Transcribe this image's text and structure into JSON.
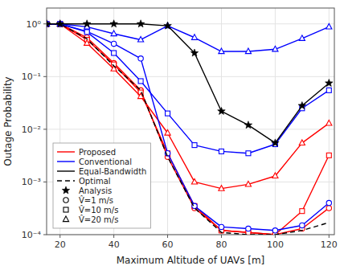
{
  "chart_data": {
    "type": "line",
    "xlabel": "Maximum Altitude of UAVs [m]",
    "ylabel": "Outage Probability",
    "x": [
      15,
      20,
      30,
      40,
      50,
      60,
      70,
      80,
      90,
      100,
      110,
      120
    ],
    "series": [
      {
        "color": "#FF0000",
        "marker": "circle",
        "line_style": "solid",
        "values": [
          1.0,
          1.0,
          0.55,
          0.18,
          0.055,
          0.003,
          0.00032,
          0.00012,
          0.00011,
          0.0001,
          0.00013,
          0.00032
        ]
      },
      {
        "color": "#FF0000",
        "marker": "square",
        "line_style": "solid",
        "values": [
          1.0,
          1.0,
          0.5,
          0.17,
          0.05,
          0.0035,
          0.00035,
          0.00012,
          0.00011,
          0.0001,
          0.00028,
          0.0032
        ]
      },
      {
        "color": "#FF0000",
        "marker": "triangle",
        "line_style": "solid",
        "values": [
          1.0,
          1.0,
          0.43,
          0.14,
          0.042,
          0.0085,
          0.001,
          0.00075,
          0.0009,
          0.0013,
          0.0055,
          0.013
        ]
      },
      {
        "color": "#0000FF",
        "marker": "circle",
        "line_style": "solid",
        "values": [
          1.0,
          1.0,
          0.72,
          0.42,
          0.22,
          0.0035,
          0.00035,
          0.00014,
          0.00013,
          0.00012,
          0.00015,
          0.0004
        ]
      },
      {
        "color": "#0000FF",
        "marker": "square",
        "line_style": "solid",
        "values": [
          1.0,
          1.0,
          0.7,
          0.28,
          0.082,
          0.02,
          0.005,
          0.0038,
          0.0035,
          0.0052,
          0.025,
          0.055
        ]
      },
      {
        "color": "#0000FF",
        "marker": "triangle",
        "line_style": "solid",
        "values": [
          1.0,
          1.0,
          0.88,
          0.65,
          0.5,
          0.92,
          0.55,
          0.3,
          0.3,
          0.33,
          0.53,
          0.88
        ]
      },
      {
        "color": "#000000",
        "marker": "star",
        "line_style": "solid",
        "values": [
          1.0,
          1.0,
          1.0,
          1.0,
          1.0,
          0.92,
          0.28,
          0.022,
          0.012,
          0.0055,
          0.028,
          0.075
        ]
      },
      {
        "color": "#000000",
        "marker": "none",
        "line_style": "dashed",
        "values": [
          1.0,
          1.0,
          0.52,
          0.16,
          0.055,
          0.003,
          0.00032,
          0.00011,
          0.0001,
          0.0001,
          0.00012,
          0.00017
        ]
      }
    ],
    "legend_entries": [
      {
        "label": "Proposed",
        "color": "#FF0000",
        "line_style": "solid",
        "marker": "none"
      },
      {
        "label": "Conventional",
        "color": "#0000FF",
        "line_style": "solid",
        "marker": "none"
      },
      {
        "label": "Equal-Bandwidth",
        "color": "#000000",
        "line_style": "solid",
        "marker": "none"
      },
      {
        "label": "Optimal",
        "color": "#000000",
        "line_style": "dashed",
        "marker": "none"
      },
      {
        "label": "Analysis",
        "color": "#000000",
        "line_style": "none",
        "marker": "star"
      },
      {
        "label": "V̂=1 m/s",
        "color": "#000000",
        "line_style": "none",
        "marker": "circle"
      },
      {
        "label": "V̂=10 m/s",
        "color": "#000000",
        "line_style": "none",
        "marker": "square"
      },
      {
        "label": "V̂=20 m/s",
        "color": "#000000",
        "line_style": "none",
        "marker": "triangle"
      }
    ],
    "xlim": [
      15,
      122
    ],
    "xticks": [
      20,
      40,
      60,
      80,
      100,
      120
    ],
    "ylim": [
      0.0001,
      2.0
    ],
    "yticks": [
      {
        "value": 0.0001,
        "label": "10⁻⁴"
      },
      {
        "value": 0.001,
        "label": "10⁻³"
      },
      {
        "value": 0.01,
        "label": "10⁻²"
      },
      {
        "value": 0.1,
        "label": "10⁻¹"
      },
      {
        "value": 1,
        "label": "10⁰"
      }
    ],
    "log": "y",
    "grid": true,
    "legend": "lower left"
  }
}
